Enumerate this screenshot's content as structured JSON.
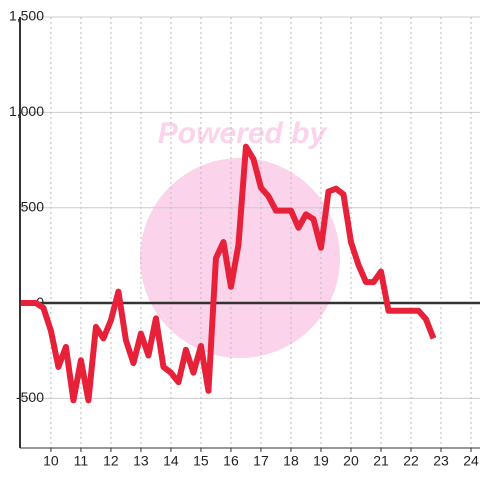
{
  "chart_data": {
    "type": "line",
    "watermark": "Powered by",
    "x": [
      9.0,
      9.5,
      9.75,
      10.0,
      10.25,
      10.5,
      10.75,
      11.0,
      11.25,
      11.5,
      11.75,
      12.0,
      12.25,
      12.5,
      12.75,
      13.0,
      13.25,
      13.5,
      13.75,
      14.0,
      14.25,
      14.5,
      14.75,
      15.0,
      15.25,
      15.5,
      15.75,
      16.0,
      16.25,
      16.5,
      16.75,
      17.0,
      17.25,
      17.5,
      17.75,
      18.0,
      18.25,
      18.5,
      18.75,
      19.0,
      19.25,
      19.5,
      19.75,
      20.0,
      20.25,
      20.5,
      20.75,
      21.0,
      21.25,
      21.5,
      21.75,
      22.0,
      22.25,
      22.5,
      22.75
    ],
    "series": [
      {
        "color": "#e8213b",
        "values": [
          0,
          0,
          -25,
          -145,
          -335,
          -230,
          -510,
          -300,
          -510,
          -125,
          -185,
          -90,
          60,
          -195,
          -315,
          -160,
          -275,
          -80,
          -335,
          -365,
          -415,
          -245,
          -365,
          -225,
          -460,
          235,
          320,
          85,
          305,
          820,
          755,
          605,
          560,
          485,
          485,
          485,
          395,
          465,
          440,
          290,
          585,
          600,
          570,
          320,
          200,
          110,
          110,
          165,
          -40,
          -40,
          -40,
          -40,
          -40,
          -85,
          -185
        ]
      }
    ],
    "xlim": [
      8.97,
      24.3
    ],
    "xticks": [
      10,
      11,
      12,
      13,
      14,
      15,
      16,
      17,
      18,
      19,
      20,
      21,
      22,
      23,
      24
    ],
    "ylim": [
      -760,
      1500
    ],
    "yticks": [
      -500,
      0,
      500,
      {
        "value": 1000,
        "label": "1,000"
      },
      {
        "value": 1500,
        "label": "1,500"
      }
    ],
    "grid": true
  }
}
